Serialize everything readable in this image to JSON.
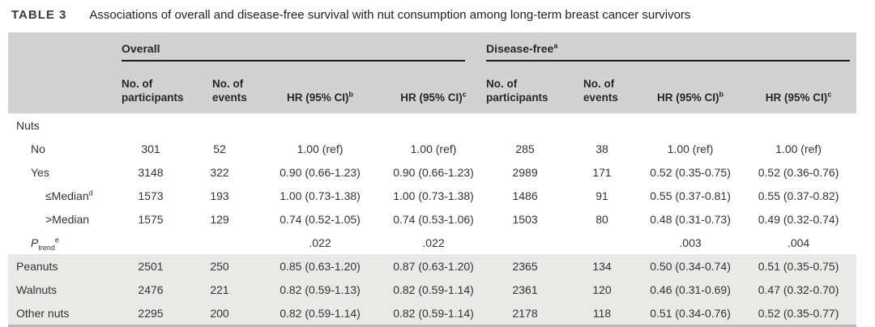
{
  "caption": {
    "label": "TABLE 3",
    "text": "Associations of overall and disease-free survival with nut consumption among long-term breast cancer survivors"
  },
  "colors": {
    "header_bg": "#d2d2d2",
    "shaded_row_bg": "#e9e9e8",
    "group_rule": "#1a1a1a",
    "bottom_rule": "#b9b9b9",
    "text": "#333333"
  },
  "table": {
    "groups": [
      {
        "name": "Overall",
        "sup": ""
      },
      {
        "name": "Disease-free",
        "sup": "a"
      }
    ],
    "columns": [
      {
        "text": "No. of\nparticipants",
        "sup": ""
      },
      {
        "text": "No. of\nevents",
        "sup": ""
      },
      {
        "text": "HR (95% CI)",
        "sup": "b"
      },
      {
        "text": "HR (95% CI)",
        "sup": "c"
      },
      {
        "text": "No. of\nparticipants",
        "sup": ""
      },
      {
        "text": "No. of\nevents",
        "sup": ""
      },
      {
        "text": "HR (95% CI)",
        "sup": "b"
      },
      {
        "text": "HR (95% CI)",
        "sup": "c"
      }
    ],
    "rows": [
      {
        "label": "Nuts",
        "indent": 0,
        "cells": [
          "",
          "",
          "",
          "",
          "",
          "",
          "",
          ""
        ]
      },
      {
        "label": "No",
        "indent": 1,
        "cells": [
          "301",
          "52",
          "1.00 (ref)",
          "1.00 (ref)",
          "285",
          "38",
          "1.00 (ref)",
          "1.00 (ref)"
        ]
      },
      {
        "label": "Yes",
        "indent": 1,
        "cells": [
          "3148",
          "322",
          "0.90 (0.66-1.23)",
          "0.90 (0.66-1.23)",
          "2989",
          "171",
          "0.52 (0.35-0.75)",
          "0.52 (0.36-0.76)"
        ]
      },
      {
        "label": "≤Median",
        "sup": "d",
        "indent": 2,
        "cells": [
          "1573",
          "193",
          "1.00 (0.73-1.38)",
          "1.00 (0.73-1.38)",
          "1486",
          "91",
          "0.55 (0.37-0.81)",
          "0.55 (0.37-0.82)"
        ]
      },
      {
        "label": ">Median",
        "indent": 2,
        "cells": [
          "1575",
          "129",
          "0.74 (0.52-1.05)",
          "0.74 (0.53-1.06)",
          "1503",
          "80",
          "0.48 (0.31-0.73)",
          "0.49 (0.32-0.74)"
        ]
      },
      {
        "label": "P",
        "sub": "trend",
        "sup": "e",
        "italic": true,
        "indent": 1,
        "cells": [
          "",
          "",
          ".022",
          ".022",
          "",
          "",
          ".003",
          ".004"
        ]
      },
      {
        "label": "Peanuts",
        "indent": 0,
        "shaded": true,
        "cells": [
          "2501",
          "250",
          "0.85 (0.63-1.20)",
          "0.87 (0.63-1.20)",
          "2365",
          "134",
          "0.50 (0.34-0.74)",
          "0.51 (0.35-0.75)"
        ]
      },
      {
        "label": "Walnuts",
        "indent": 0,
        "shaded": true,
        "cells": [
          "2476",
          "221",
          "0.82 (0.59-1.13)",
          "0.82 (0.59-1.14)",
          "2361",
          "120",
          "0.46 (0.31-0.69)",
          "0.47 (0.32-0.70)"
        ]
      },
      {
        "label": "Other nuts",
        "indent": 0,
        "shaded": true,
        "cells": [
          "2295",
          "200",
          "0.82 (0.59-1.14)",
          "0.82 (0.59-1.14)",
          "2178",
          "118",
          "0.51 (0.34-0.76)",
          "0.52 (0.35-0.77)"
        ]
      }
    ]
  }
}
